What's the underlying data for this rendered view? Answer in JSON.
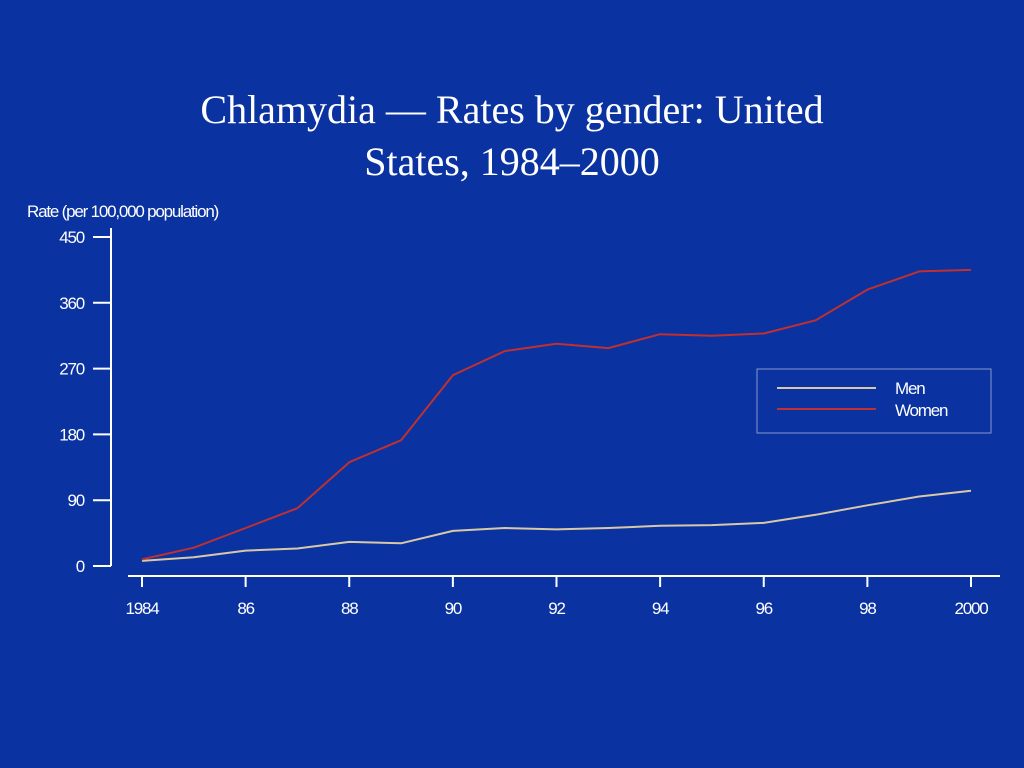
{
  "slide": {
    "title_line1": "Chlamydia — Rates by gender: United",
    "title_line2": "States, 1984–2000",
    "background_color": "#0a32a0"
  },
  "chart_data": {
    "type": "line",
    "ylabel": "Rate (per 100,000 population)",
    "xlabel": "",
    "ylim": [
      0,
      450
    ],
    "yticks": [
      0,
      90,
      180,
      270,
      360,
      450
    ],
    "xlim": [
      1984,
      2000
    ],
    "xticks": [
      1984,
      1986,
      1988,
      1990,
      1992,
      1994,
      1996,
      1998,
      2000
    ],
    "xtick_labels": [
      "1984",
      "86",
      "88",
      "90",
      "92",
      "94",
      "96",
      "98",
      "2000"
    ],
    "x": [
      1984,
      1985,
      1986,
      1987,
      1988,
      1989,
      1990,
      1991,
      1992,
      1993,
      1994,
      1995,
      1996,
      1997,
      1998,
      1999,
      2000
    ],
    "series": [
      {
        "name": "Men",
        "color": "#d8c8a8",
        "values": [
          7,
          12,
          21,
          24,
          33,
          31,
          48,
          52,
          50,
          52,
          55,
          56,
          59,
          70,
          83,
          95,
          103
        ]
      },
      {
        "name": "Women",
        "color": "#c03030",
        "values": [
          9,
          25,
          52,
          79,
          142,
          172,
          261,
          294,
          304,
          298,
          317,
          315,
          318,
          336,
          378,
          403,
          405
        ]
      }
    ],
    "legend": "right",
    "grid": false
  }
}
